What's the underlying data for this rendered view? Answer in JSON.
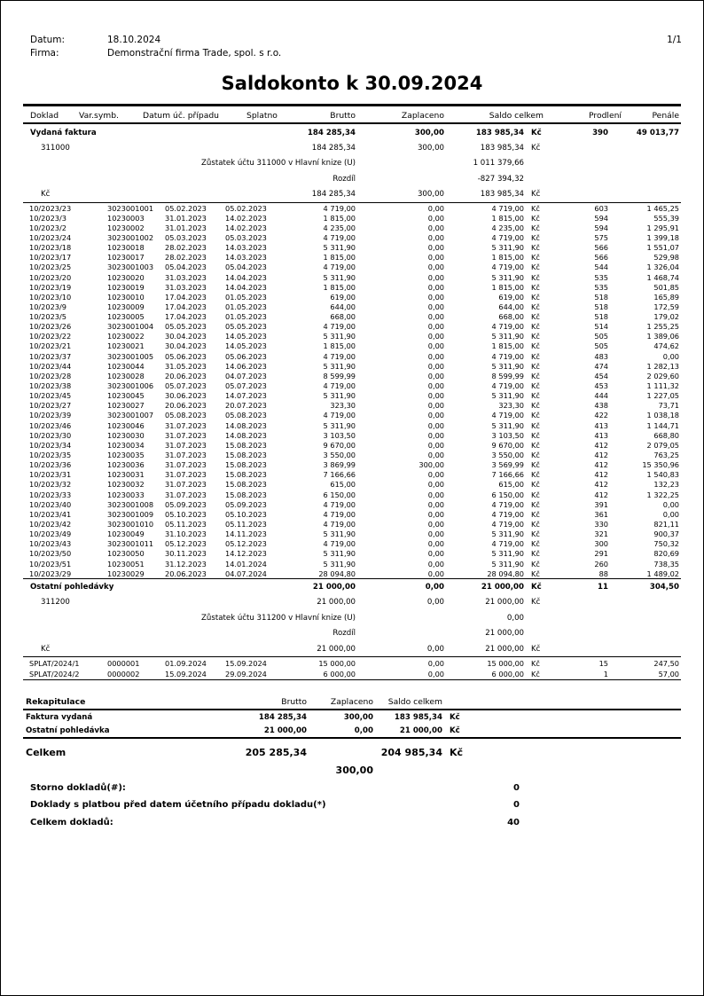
{
  "colors": {
    "ink": "#000000",
    "paper": "#ffffff"
  },
  "page": {
    "pagenum": "1/1"
  },
  "header": {
    "datum_label": "Datum:",
    "datum_value": "18.10.2024",
    "firma_label": "Firma:",
    "firma_value": "Demonstrační firma Trade, spol. s r.o."
  },
  "title": "Saldokonto k 30.09.2024",
  "table": {
    "currency": "Kč",
    "columns": [
      "Doklad",
      "Var.symb.",
      "Datum úč. případu",
      "Splatno",
      "Brutto",
      "Zaplaceno",
      "Saldo celkem",
      "Prodlení",
      "Penále"
    ],
    "sections": [
      {
        "title": "Vydaná faktura",
        "summary": {
          "brutto": "184 285,34",
          "zaplaceno": "300,00",
          "saldo": "183 985,34",
          "prodleni": "390",
          "penale": "49 013,77"
        },
        "account": {
          "code": "311000",
          "brutto": "184 285,34",
          "zaplaceno": "300,00",
          "saldo": "183 985,34"
        },
        "zustatek": {
          "label": "Zůstatek účtu 311000 v Hlavní knize (U)",
          "value": "1 011 379,66"
        },
        "rozdil": {
          "label": "Rozdíl",
          "value": "-827 394,32"
        },
        "kc": {
          "label": "Kč",
          "brutto": "184 285,34",
          "zaplaceno": "300,00",
          "saldo": "183 985,34"
        },
        "rows": [
          [
            "10/2023/23",
            "3023001001",
            "05.02.2023",
            "05.02.2023",
            "4 719,00",
            "0,00",
            "4 719,00",
            "603",
            "1 465,25"
          ],
          [
            "10/2023/3",
            "10230003",
            "31.01.2023",
            "14.02.2023",
            "1 815,00",
            "0,00",
            "1 815,00",
            "594",
            "555,39"
          ],
          [
            "10/2023/2",
            "10230002",
            "31.01.2023",
            "14.02.2023",
            "4 235,00",
            "0,00",
            "4 235,00",
            "594",
            "1 295,91"
          ],
          [
            "10/2023/24",
            "3023001002",
            "05.03.2023",
            "05.03.2023",
            "4 719,00",
            "0,00",
            "4 719,00",
            "575",
            "1 399,18"
          ],
          [
            "10/2023/18",
            "10230018",
            "28.02.2023",
            "14.03.2023",
            "5 311,90",
            "0,00",
            "5 311,90",
            "566",
            "1 551,07"
          ],
          [
            "10/2023/17",
            "10230017",
            "28.02.2023",
            "14.03.2023",
            "1 815,00",
            "0,00",
            "1 815,00",
            "566",
            "529,98"
          ],
          [
            "10/2023/25",
            "3023001003",
            "05.04.2023",
            "05.04.2023",
            "4 719,00",
            "0,00",
            "4 719,00",
            "544",
            "1 326,04"
          ],
          [
            "10/2023/20",
            "10230020",
            "31.03.2023",
            "14.04.2023",
            "5 311,90",
            "0,00",
            "5 311,90",
            "535",
            "1 468,74"
          ],
          [
            "10/2023/19",
            "10230019",
            "31.03.2023",
            "14.04.2023",
            "1 815,00",
            "0,00",
            "1 815,00",
            "535",
            "501,85"
          ],
          [
            "10/2023/10",
            "10230010",
            "17.04.2023",
            "01.05.2023",
            "619,00",
            "0,00",
            "619,00",
            "518",
            "165,89"
          ],
          [
            "10/2023/9",
            "10230009",
            "17.04.2023",
            "01.05.2023",
            "644,00",
            "0,00",
            "644,00",
            "518",
            "172,59"
          ],
          [
            "10/2023/5",
            "10230005",
            "17.04.2023",
            "01.05.2023",
            "668,00",
            "0,00",
            "668,00",
            "518",
            "179,02"
          ],
          [
            "10/2023/26",
            "3023001004",
            "05.05.2023",
            "05.05.2023",
            "4 719,00",
            "0,00",
            "4 719,00",
            "514",
            "1 255,25"
          ],
          [
            "10/2023/22",
            "10230022",
            "30.04.2023",
            "14.05.2023",
            "5 311,90",
            "0,00",
            "5 311,90",
            "505",
            "1 389,06"
          ],
          [
            "10/2023/21",
            "10230021",
            "30.04.2023",
            "14.05.2023",
            "1 815,00",
            "0,00",
            "1 815,00",
            "505",
            "474,62"
          ],
          [
            "10/2023/37",
            "3023001005",
            "05.06.2023",
            "05.06.2023",
            "4 719,00",
            "0,00",
            "4 719,00",
            "483",
            "0,00"
          ],
          [
            "10/2023/44",
            "10230044",
            "31.05.2023",
            "14.06.2023",
            "5 311,90",
            "0,00",
            "5 311,90",
            "474",
            "1 282,13"
          ],
          [
            "10/2023/28",
            "10230028",
            "20.06.2023",
            "04.07.2023",
            "8 599,99",
            "0,00",
            "8 599,99",
            "454",
            "2 029,60"
          ],
          [
            "10/2023/38",
            "3023001006",
            "05.07.2023",
            "05.07.2023",
            "4 719,00",
            "0,00",
            "4 719,00",
            "453",
            "1 111,32"
          ],
          [
            "10/2023/45",
            "10230045",
            "30.06.2023",
            "14.07.2023",
            "5 311,90",
            "0,00",
            "5 311,90",
            "444",
            "1 227,05"
          ],
          [
            "10/2023/27",
            "10230027",
            "20.06.2023",
            "20.07.2023",
            "323,30",
            "0,00",
            "323,30",
            "438",
            "73,71"
          ],
          [
            "10/2023/39",
            "3023001007",
            "05.08.2023",
            "05.08.2023",
            "4 719,00",
            "0,00",
            "4 719,00",
            "422",
            "1 038,18"
          ],
          [
            "10/2023/46",
            "10230046",
            "31.07.2023",
            "14.08.2023",
            "5 311,90",
            "0,00",
            "5 311,90",
            "413",
            "1 144,71"
          ],
          [
            "10/2023/30",
            "10230030",
            "31.07.2023",
            "14.08.2023",
            "3 103,50",
            "0,00",
            "3 103,50",
            "413",
            "668,80"
          ],
          [
            "10/2023/34",
            "10230034",
            "31.07.2023",
            "15.08.2023",
            "9 670,00",
            "0,00",
            "9 670,00",
            "412",
            "2 079,05"
          ],
          [
            "10/2023/35",
            "10230035",
            "31.07.2023",
            "15.08.2023",
            "3 550,00",
            "0,00",
            "3 550,00",
            "412",
            "763,25"
          ],
          [
            "10/2023/36",
            "10230036",
            "31.07.2023",
            "15.08.2023",
            "3 869,99",
            "300,00",
            "3 569,99",
            "412",
            "15 350,96"
          ],
          [
            "10/2023/31",
            "10230031",
            "31.07.2023",
            "15.08.2023",
            "7 166,66",
            "0,00",
            "7 166,66",
            "412",
            "1 540,83"
          ],
          [
            "10/2023/32",
            "10230032",
            "31.07.2023",
            "15.08.2023",
            "615,00",
            "0,00",
            "615,00",
            "412",
            "132,23"
          ],
          [
            "10/2023/33",
            "10230033",
            "31.07.2023",
            "15.08.2023",
            "6 150,00",
            "0,00",
            "6 150,00",
            "412",
            "1 322,25"
          ],
          [
            "10/2023/40",
            "3023001008",
            "05.09.2023",
            "05.09.2023",
            "4 719,00",
            "0,00",
            "4 719,00",
            "391",
            "0,00"
          ],
          [
            "10/2023/41",
            "3023001009",
            "05.10.2023",
            "05.10.2023",
            "4 719,00",
            "0,00",
            "4 719,00",
            "361",
            "0,00"
          ],
          [
            "10/2023/42",
            "3023001010",
            "05.11.2023",
            "05.11.2023",
            "4 719,00",
            "0,00",
            "4 719,00",
            "330",
            "821,11"
          ],
          [
            "10/2023/49",
            "10230049",
            "31.10.2023",
            "14.11.2023",
            "5 311,90",
            "0,00",
            "5 311,90",
            "321",
            "900,37"
          ],
          [
            "10/2023/43",
            "3023001011",
            "05.12.2023",
            "05.12.2023",
            "4 719,00",
            "0,00",
            "4 719,00",
            "300",
            "750,32"
          ],
          [
            "10/2023/50",
            "10230050",
            "30.11.2023",
            "14.12.2023",
            "5 311,90",
            "0,00",
            "5 311,90",
            "291",
            "820,69"
          ],
          [
            "10/2023/51",
            "10230051",
            "31.12.2023",
            "14.01.2024",
            "5 311,90",
            "0,00",
            "5 311,90",
            "260",
            "738,35"
          ],
          [
            "10/2023/29",
            "10230029",
            "20.06.2023",
            "04.07.2024",
            "28 094,80",
            "0,00",
            "28 094,80",
            "88",
            "1 489,02"
          ]
        ]
      },
      {
        "title": "Ostatní pohledávky",
        "summary": {
          "brutto": "21 000,00",
          "zaplaceno": "0,00",
          "saldo": "21 000,00",
          "prodleni": "11",
          "penale": "304,50"
        },
        "account": {
          "code": "311200",
          "brutto": "21 000,00",
          "zaplaceno": "0,00",
          "saldo": "21 000,00"
        },
        "zustatek": {
          "label": "Zůstatek účtu 311200 v Hlavní knize (U)",
          "value": "0,00"
        },
        "rozdil": {
          "label": "Rozdíl",
          "value": "21 000,00"
        },
        "kc": {
          "label": "Kč",
          "brutto": "21 000,00",
          "zaplaceno": "0,00",
          "saldo": "21 000,00"
        },
        "rows": [
          [
            "SPLAT/2024/1",
            "0000001",
            "01.09.2024",
            "15.09.2024",
            "15 000,00",
            "0,00",
            "15 000,00",
            "15",
            "247,50"
          ],
          [
            "SPLAT/2024/2",
            "0000002",
            "15.09.2024",
            "29.09.2024",
            "6 000,00",
            "0,00",
            "6 000,00",
            "1",
            "57,00"
          ]
        ]
      }
    ]
  },
  "rekapitulace": {
    "title": "Rekapitulace",
    "columns": [
      "Brutto",
      "Zaplaceno",
      "Saldo celkem"
    ],
    "rows": [
      {
        "label": "Faktura vydaná",
        "brutto": "184 285,34",
        "zaplaceno": "300,00",
        "saldo": "183 985,34"
      },
      {
        "label": "Ostatní pohledávka",
        "brutto": "21 000,00",
        "zaplaceno": "0,00",
        "saldo": "21 000,00"
      }
    ],
    "celkem": {
      "label": "Celkem",
      "brutto": "205 285,34",
      "saldo": "204 985,34",
      "zaplaceno_sub": "300,00"
    }
  },
  "footer": {
    "stats": [
      {
        "label": "Storno dokladů(#):",
        "value": "0"
      },
      {
        "label": "Doklady s platbou před datem účetního případu dokladu(*)",
        "value": "0"
      },
      {
        "label": "Celkem dokladů:",
        "value": "40"
      }
    ]
  }
}
